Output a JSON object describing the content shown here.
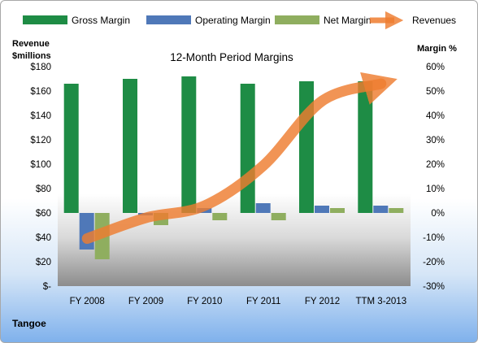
{
  "chart_data": {
    "type": "bar",
    "title": "12-Month Period Margins",
    "company": "Tangoe",
    "categories": [
      "FY 2008",
      "FY 2009",
      "FY 2010",
      "FY 2011",
      "FY 2012",
      "TTM 3-2013"
    ],
    "left_axis": {
      "label_line1": "Revenue",
      "label_line2": "$millions",
      "ticks": [
        "$-",
        "$20",
        "$40",
        "$60",
        "$80",
        "$100",
        "$120",
        "$140",
        "$160",
        "$180"
      ],
      "ylim": [
        0,
        180
      ]
    },
    "right_axis": {
      "label": "Margin %",
      "ticks": [
        "-30%",
        "-20%",
        "-10%",
        "0%",
        "10%",
        "20%",
        "30%",
        "40%",
        "50%",
        "60%"
      ],
      "ylim": [
        -30,
        60
      ]
    },
    "series": [
      {
        "name": "Gross Margin",
        "type": "bar",
        "axis": "right",
        "color": "#1e8c45",
        "values": [
          53,
          55,
          56,
          53,
          54,
          54
        ]
      },
      {
        "name": "Operating Margin",
        "type": "bar",
        "axis": "right",
        "color": "#4f78b8",
        "values": [
          -15,
          -1,
          2,
          4,
          3,
          3
        ]
      },
      {
        "name": "Net Margin",
        "type": "bar",
        "axis": "right",
        "color": "#8fae5f",
        "values": [
          -19,
          -5,
          -3,
          -3,
          2,
          2
        ]
      },
      {
        "name": "Revenues",
        "type": "line",
        "axis": "left",
        "color": "#ee7d2f",
        "values": [
          39,
          56,
          66,
          99,
          152,
          166
        ]
      }
    ],
    "legend_position": "top",
    "grid": false
  }
}
